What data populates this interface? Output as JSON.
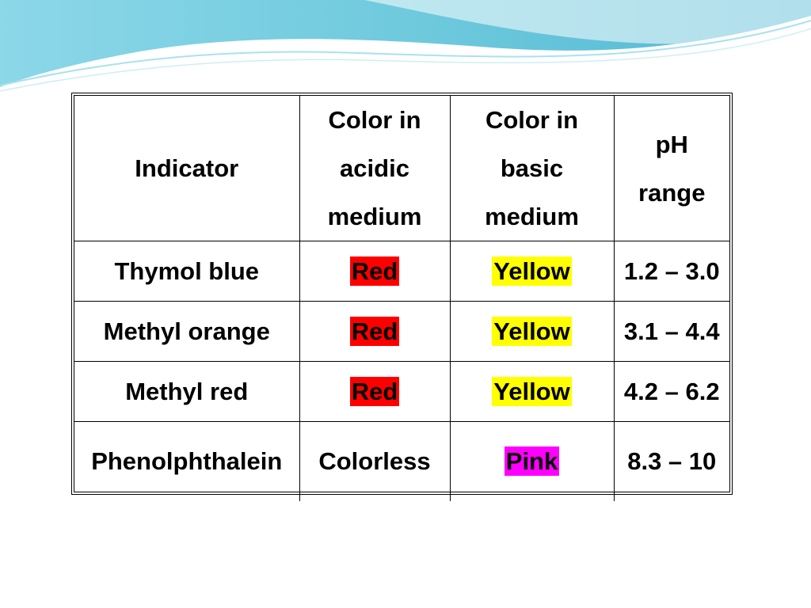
{
  "table": {
    "headers": {
      "indicator": "Indicator",
      "acidic": [
        "Color in",
        "acidic",
        "medium"
      ],
      "basic": [
        "Color in",
        "basic",
        "medium"
      ],
      "ph": [
        "pH",
        "range"
      ]
    },
    "rows": [
      {
        "indicator": "Thymol blue",
        "acidic": "Red",
        "basic": "Yellow",
        "ph": "1.2 – 3.0"
      },
      {
        "indicator": "Methyl orange",
        "acidic": "Red",
        "basic": "Yellow",
        "ph": "3.1 – 4.4"
      },
      {
        "indicator": "Methyl red",
        "acidic": "Red",
        "basic": "Yellow",
        "ph": "4.2 – 6.2"
      },
      {
        "indicator": "Phenolphthalein",
        "acidic": "Colorless",
        "basic": "Pink",
        "ph": "8.3 – 10"
      }
    ]
  },
  "colors": {
    "red_highlight": "#ff0000",
    "yellow_highlight": "#ffff00",
    "pink_highlight": "#ff00ff",
    "wave_primary": "#5fc4d9",
    "wave_light": "#a9e2ee"
  }
}
